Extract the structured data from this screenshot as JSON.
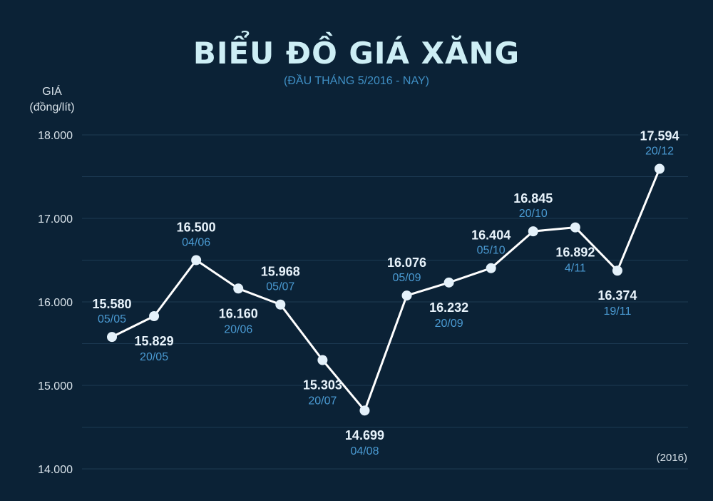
{
  "title": "BIỂU ĐỒ GIÁ XĂNG",
  "subtitle": "(ĐẦU THÁNG 5/2016 - NAY)",
  "colors": {
    "background": "#0b2236",
    "line": "#ffffff",
    "value_label": "#e8f3fb",
    "date_label": "#4a9ad2",
    "axis_text": "#d9e3ea",
    "grid": "#1c3a52"
  },
  "chart_data": {
    "type": "line",
    "title": "BIỂU ĐỒ GIÁ XĂNG",
    "subtitle": "(ĐẦU THÁNG 5/2016 - NAY)",
    "ylabel": [
      "GIÁ",
      "(đồng/lít)"
    ],
    "xlabel": "(2016)",
    "ylim": [
      14000,
      18000
    ],
    "yticks": [
      "14.000",
      "15.000",
      "16.000",
      "17.000",
      "18.000"
    ],
    "grid": true,
    "x": [
      "05/05",
      "20/05",
      "04/06",
      "20/06",
      "05/07",
      "20/07",
      "04/08",
      "05/09",
      "20/09",
      "05/10",
      "20/10",
      "4/11",
      "19/11",
      "20/12"
    ],
    "values": [
      15580,
      15829,
      16500,
      16160,
      15968,
      15303,
      14699,
      16076,
      16232,
      16404,
      16845,
      16892,
      16374,
      17594
    ],
    "value_labels": [
      "15.580",
      "15.829",
      "16.500",
      "16.160",
      "15.968",
      "15.303",
      "14.699",
      "16.076",
      "16.232",
      "16.404",
      "16.845",
      "16.892",
      "16.374",
      "17.594"
    ]
  }
}
